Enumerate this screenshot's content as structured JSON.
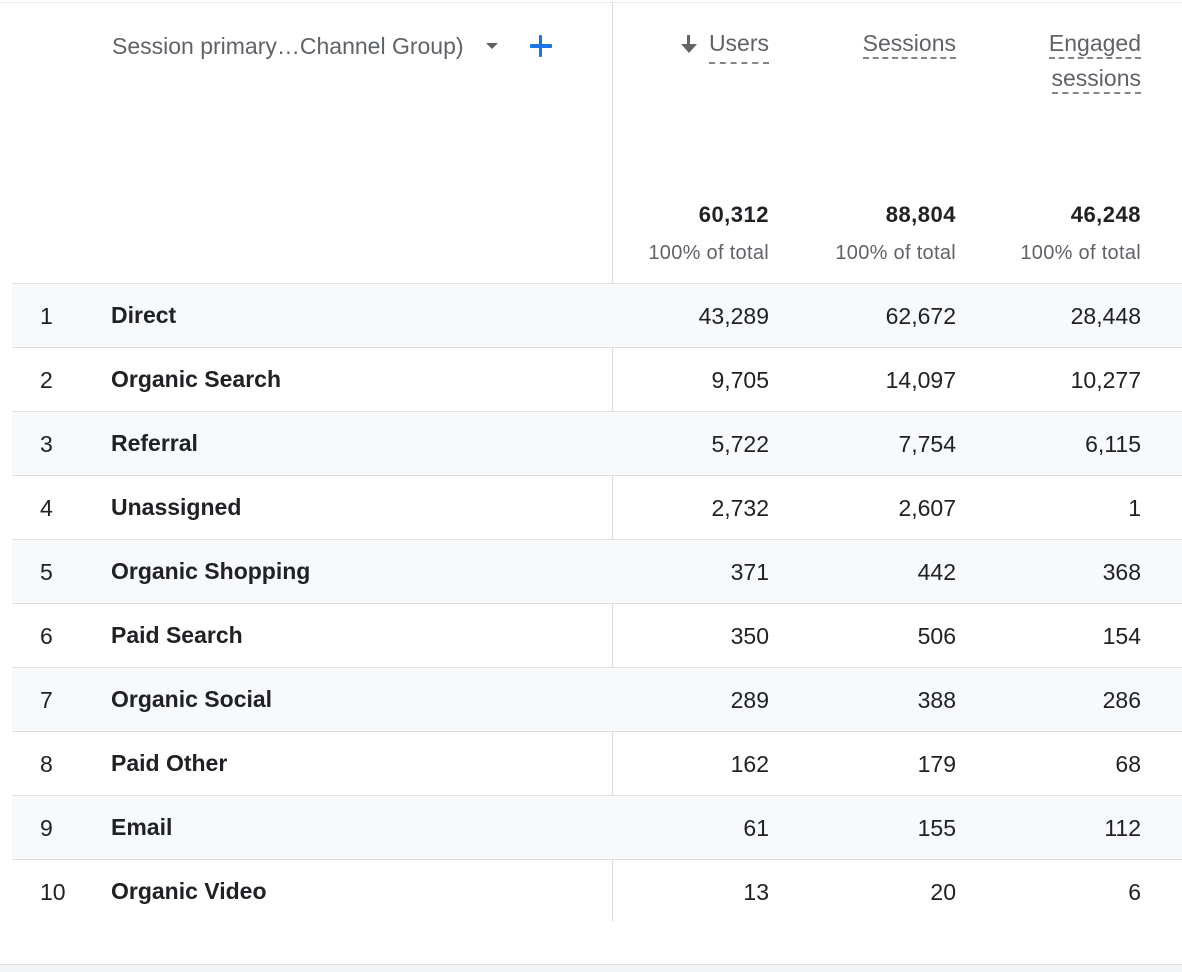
{
  "dimension": {
    "label": "Session primary…Channel Group)"
  },
  "metrics": {
    "users": {
      "label": "Users",
      "total": "60,312",
      "pct": "100% of total"
    },
    "sessions": {
      "label": "Sessions",
      "total": "88,804",
      "pct": "100% of total"
    },
    "engaged": {
      "label_line1": "Engaged",
      "label_line2": "sessions",
      "total": "46,248",
      "pct": "100% of total"
    }
  },
  "sort": {
    "column": "Users",
    "direction": "descending"
  },
  "colors": {
    "accent": "#1a73e8",
    "stripe": "#f8f9fa",
    "divider": "#dadce0"
  },
  "rows": [
    {
      "idx": "1",
      "name": "Direct",
      "users": "43,289",
      "sessions": "62,672",
      "engaged": "28,448"
    },
    {
      "idx": "2",
      "name": "Organic Search",
      "users": "9,705",
      "sessions": "14,097",
      "engaged": "10,277"
    },
    {
      "idx": "3",
      "name": "Referral",
      "users": "5,722",
      "sessions": "7,754",
      "engaged": "6,115"
    },
    {
      "idx": "4",
      "name": "Unassigned",
      "users": "2,732",
      "sessions": "2,607",
      "engaged": "1"
    },
    {
      "idx": "5",
      "name": "Organic Shopping",
      "users": "371",
      "sessions": "442",
      "engaged": "368"
    },
    {
      "idx": "6",
      "name": "Paid Search",
      "users": "350",
      "sessions": "506",
      "engaged": "154"
    },
    {
      "idx": "7",
      "name": "Organic Social",
      "users": "289",
      "sessions": "388",
      "engaged": "286"
    },
    {
      "idx": "8",
      "name": "Paid Other",
      "users": "162",
      "sessions": "179",
      "engaged": "68"
    },
    {
      "idx": "9",
      "name": "Email",
      "users": "61",
      "sessions": "155",
      "engaged": "112"
    },
    {
      "idx": "10",
      "name": "Organic Video",
      "users": "13",
      "sessions": "20",
      "engaged": "6"
    }
  ]
}
